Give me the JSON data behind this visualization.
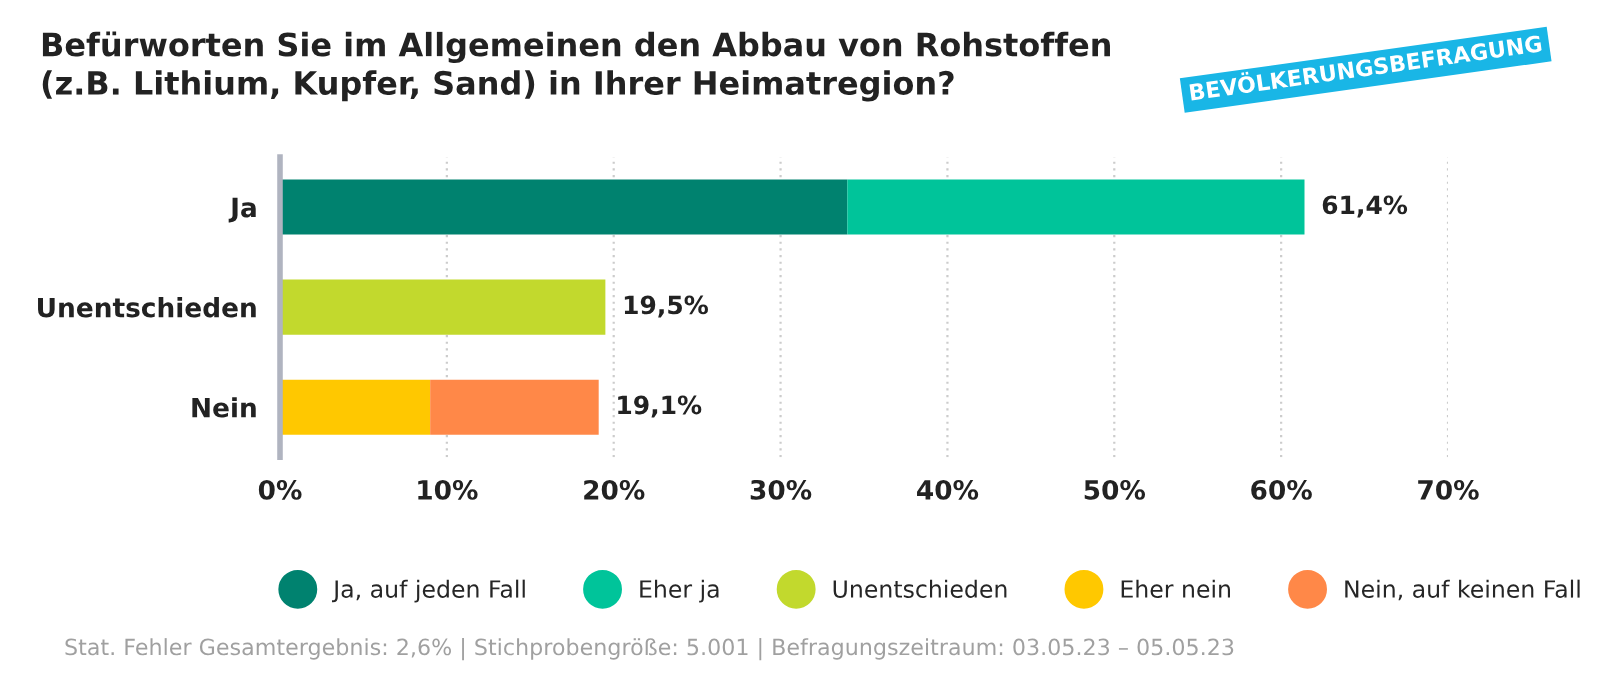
{
  "chart_data": {
    "type": "bar",
    "orientation": "horizontal",
    "stacked": true,
    "title": "Befürworten Sie im Allgemeinen den Abbau von Rohstoffen\n(z.B. Lithium, Kupfer, Sand) in Ihrer Heimatregion?",
    "categories": [
      "Ja",
      "Unentschieden",
      "Nein"
    ],
    "series": [
      {
        "name": "Ja, auf jeden Fall",
        "color": "#00826f",
        "values": [
          34.0,
          null,
          null
        ]
      },
      {
        "name": "Eher ja",
        "color": "#00c49a",
        "values": [
          27.4,
          null,
          null
        ]
      },
      {
        "name": "Unentschieden",
        "color": "#c2d92d",
        "values": [
          null,
          19.5,
          null
        ]
      },
      {
        "name": "Eher nein",
        "color": "#ffc800",
        "values": [
          null,
          null,
          9.0
        ]
      },
      {
        "name": "Nein, auf keinen Fall",
        "color": "#ff8848",
        "values": [
          null,
          null,
          10.1
        ]
      }
    ],
    "totals": [
      "61,4%",
      "19,5%",
      "19,1%"
    ],
    "xlim": [
      0,
      70
    ],
    "xticks": [
      {
        "value": 0,
        "label": "0%"
      },
      {
        "value": 10,
        "label": "10%"
      },
      {
        "value": 20,
        "label": "20%"
      },
      {
        "value": 30,
        "label": "30%"
      },
      {
        "value": 40,
        "label": "40%"
      },
      {
        "value": 50,
        "label": "50%"
      },
      {
        "value": 60,
        "label": "60%"
      },
      {
        "value": 70,
        "label": "70%"
      }
    ],
    "grid": "x",
    "legend": "bottom",
    "annotations": [
      "BEVÖLKERUNGSBEFRAGUNG",
      "Stat. Fehler Gesamtergebnis: 2,6% | Stichprobengröße: 5.001 | Befragungszeitraum: 03.05.23 – 05.05.23"
    ]
  }
}
